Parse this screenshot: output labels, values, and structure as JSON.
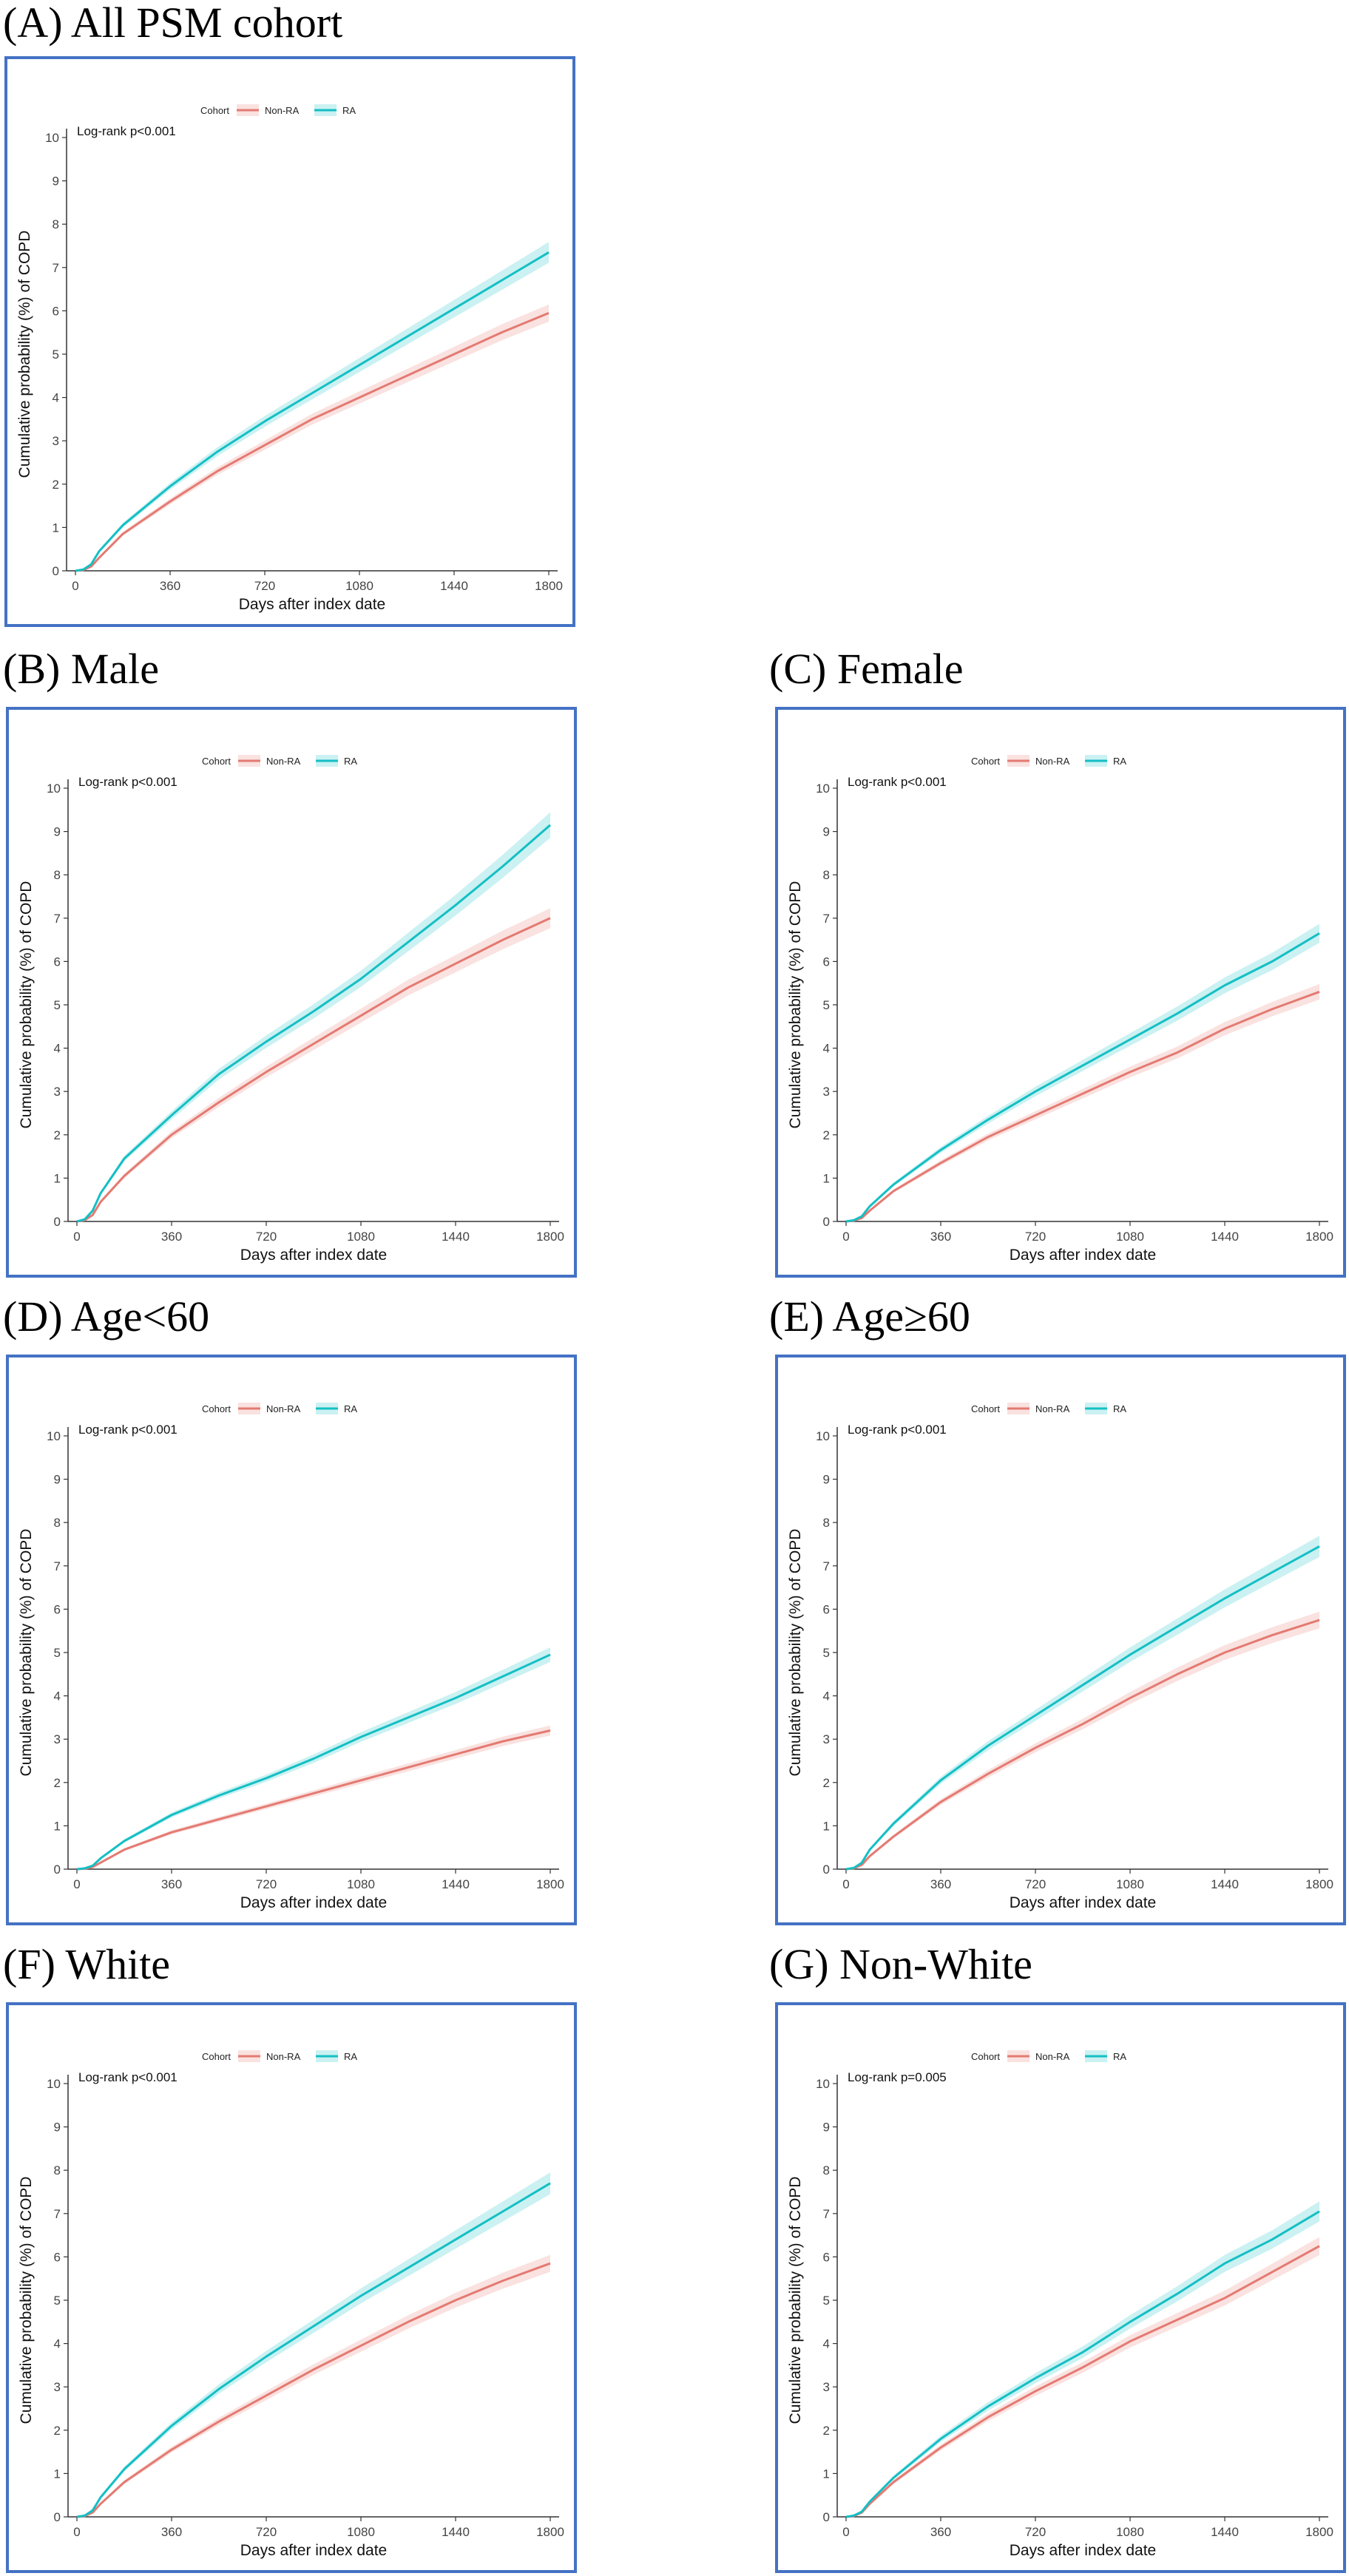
{
  "colors": {
    "non_ra": "#e47a72",
    "ra": "#14bfc4",
    "border": "#4472c4"
  },
  "chart_data": [
    {
      "id": "A",
      "panel_title": "(A) All PSM cohort",
      "type": "line",
      "title": "",
      "xlabel": "Days after index date",
      "ylabel": "Cumulative probability (%) of COPD",
      "xticks": [
        0,
        360,
        720,
        1080,
        1440,
        1800
      ],
      "yticks": [
        0,
        1,
        2,
        3,
        4,
        5,
        6,
        7,
        8,
        9,
        10
      ],
      "xlim": [
        0,
        1800
      ],
      "ylim": [
        0,
        10
      ],
      "annotation": "Log-rank p<0.001",
      "legend": {
        "title": "Cohort",
        "placement": "top-center",
        "entries": [
          "Non-RA",
          "RA"
        ]
      },
      "x": [
        0,
        30,
        60,
        90,
        180,
        360,
        540,
        720,
        900,
        1080,
        1260,
        1440,
        1620,
        1800
      ],
      "series": [
        {
          "name": "Non-RA",
          "values": [
            0,
            0.02,
            0.1,
            0.3,
            0.85,
            1.6,
            2.3,
            2.9,
            3.5,
            4.0,
            4.5,
            5.0,
            5.5,
            5.95
          ]
        },
        {
          "name": "RA",
          "values": [
            0,
            0.03,
            0.15,
            0.45,
            1.05,
            1.95,
            2.75,
            3.45,
            4.1,
            4.75,
            5.4,
            6.05,
            6.7,
            7.35
          ]
        }
      ]
    },
    {
      "id": "B",
      "panel_title": "(B) Male",
      "type": "line",
      "title": "",
      "xlabel": "Days after index date",
      "ylabel": "Cumulative probability (%) of COPD",
      "xticks": [
        0,
        360,
        720,
        1080,
        1440,
        1800
      ],
      "yticks": [
        0,
        1,
        2,
        3,
        4,
        5,
        6,
        7,
        8,
        9,
        10
      ],
      "xlim": [
        0,
        1800
      ],
      "ylim": [
        0,
        10
      ],
      "annotation": "Log-rank p<0.001",
      "legend": {
        "title": "Cohort",
        "placement": "top-center",
        "entries": [
          "Non-RA",
          "RA"
        ]
      },
      "x": [
        0,
        30,
        60,
        90,
        180,
        360,
        540,
        720,
        900,
        1080,
        1260,
        1440,
        1620,
        1800
      ],
      "series": [
        {
          "name": "Non-RA",
          "values": [
            0,
            0.03,
            0.15,
            0.45,
            1.05,
            2.0,
            2.75,
            3.45,
            4.1,
            4.75,
            5.4,
            5.95,
            6.5,
            7.0
          ]
        },
        {
          "name": "RA",
          "values": [
            0,
            0.05,
            0.25,
            0.65,
            1.45,
            2.45,
            3.4,
            4.15,
            4.85,
            5.6,
            6.45,
            7.3,
            8.2,
            9.15
          ]
        }
      ]
    },
    {
      "id": "C",
      "panel_title": "(C) Female",
      "type": "line",
      "title": "",
      "xlabel": "Days after index date",
      "ylabel": "Cumulative probability (%) of COPD",
      "xticks": [
        0,
        360,
        720,
        1080,
        1440,
        1800
      ],
      "yticks": [
        0,
        1,
        2,
        3,
        4,
        5,
        6,
        7,
        8,
        9,
        10
      ],
      "xlim": [
        0,
        1800
      ],
      "ylim": [
        0,
        10
      ],
      "annotation": "Log-rank p<0.001",
      "legend": {
        "title": "Cohort",
        "placement": "top-center",
        "entries": [
          "Non-RA",
          "RA"
        ]
      },
      "x": [
        0,
        30,
        60,
        90,
        180,
        360,
        540,
        720,
        900,
        1080,
        1260,
        1440,
        1620,
        1800
      ],
      "series": [
        {
          "name": "Non-RA",
          "values": [
            0,
            0.02,
            0.08,
            0.25,
            0.7,
            1.35,
            1.95,
            2.45,
            2.95,
            3.45,
            3.9,
            4.45,
            4.9,
            5.3
          ]
        },
        {
          "name": "RA",
          "values": [
            0,
            0.03,
            0.12,
            0.35,
            0.85,
            1.65,
            2.35,
            3.0,
            3.6,
            4.2,
            4.8,
            5.45,
            6.0,
            6.65
          ]
        }
      ]
    },
    {
      "id": "D",
      "panel_title": "(D) Age<60",
      "type": "line",
      "title": "",
      "xlabel": "Days after index date",
      "ylabel": "Cumulative probability (%) of COPD",
      "xticks": [
        0,
        360,
        720,
        1080,
        1440,
        1800
      ],
      "yticks": [
        0,
        1,
        2,
        3,
        4,
        5,
        6,
        7,
        8,
        9,
        10
      ],
      "xlim": [
        0,
        1800
      ],
      "ylim": [
        0,
        10
      ],
      "annotation": "Log-rank p<0.001",
      "legend": {
        "title": "Cohort",
        "placement": "top-center",
        "entries": [
          "Non-RA",
          "RA"
        ]
      },
      "x": [
        0,
        30,
        60,
        90,
        180,
        360,
        540,
        720,
        900,
        1080,
        1260,
        1440,
        1620,
        1800
      ],
      "series": [
        {
          "name": "Non-RA",
          "values": [
            0,
            0.01,
            0.05,
            0.15,
            0.45,
            0.85,
            1.15,
            1.45,
            1.75,
            2.05,
            2.35,
            2.65,
            2.95,
            3.2
          ]
        },
        {
          "name": "RA",
          "values": [
            0,
            0.02,
            0.08,
            0.25,
            0.65,
            1.25,
            1.7,
            2.1,
            2.55,
            3.05,
            3.5,
            3.95,
            4.45,
            4.95
          ]
        }
      ]
    },
    {
      "id": "E",
      "panel_title": "(E) Age≥60",
      "type": "line",
      "title": "",
      "xlabel": "Days after index date",
      "ylabel": "Cumulative probability (%) of COPD",
      "xticks": [
        0,
        360,
        720,
        1080,
        1440,
        1800
      ],
      "yticks": [
        0,
        1,
        2,
        3,
        4,
        5,
        6,
        7,
        8,
        9,
        10
      ],
      "xlim": [
        0,
        1800
      ],
      "ylim": [
        0,
        10
      ],
      "annotation": "Log-rank p<0.001",
      "legend": {
        "title": "Cohort",
        "placement": "top-center",
        "entries": [
          "Non-RA",
          "RA"
        ]
      },
      "x": [
        0,
        30,
        60,
        90,
        180,
        360,
        540,
        720,
        900,
        1080,
        1260,
        1440,
        1620,
        1800
      ],
      "series": [
        {
          "name": "Non-RA",
          "values": [
            0,
            0.02,
            0.1,
            0.3,
            0.75,
            1.55,
            2.2,
            2.8,
            3.35,
            3.95,
            4.5,
            5.0,
            5.4,
            5.75
          ]
        },
        {
          "name": "RA",
          "values": [
            0,
            0.03,
            0.15,
            0.45,
            1.05,
            2.05,
            2.85,
            3.55,
            4.25,
            4.95,
            5.6,
            6.25,
            6.85,
            7.45
          ]
        }
      ]
    },
    {
      "id": "F",
      "panel_title": "(F) White",
      "type": "line",
      "title": "",
      "xlabel": "Days after index date",
      "ylabel": "Cumulative probability (%) of COPD",
      "xticks": [
        0,
        360,
        720,
        1080,
        1440,
        1800
      ],
      "yticks": [
        0,
        1,
        2,
        3,
        4,
        5,
        6,
        7,
        8,
        9,
        10
      ],
      "xlim": [
        0,
        1800
      ],
      "ylim": [
        0,
        10
      ],
      "annotation": "Log-rank p<0.001",
      "legend": {
        "title": "Cohort",
        "placement": "top-center",
        "entries": [
          "Non-RA",
          "RA"
        ]
      },
      "x": [
        0,
        30,
        60,
        90,
        180,
        360,
        540,
        720,
        900,
        1080,
        1260,
        1440,
        1620,
        1800
      ],
      "series": [
        {
          "name": "Non-RA",
          "values": [
            0,
            0.02,
            0.1,
            0.3,
            0.8,
            1.55,
            2.2,
            2.8,
            3.4,
            3.95,
            4.5,
            5.0,
            5.45,
            5.85
          ]
        },
        {
          "name": "RA",
          "values": [
            0,
            0.03,
            0.15,
            0.45,
            1.1,
            2.1,
            2.95,
            3.7,
            4.4,
            5.1,
            5.75,
            6.4,
            7.05,
            7.7
          ]
        }
      ]
    },
    {
      "id": "G",
      "panel_title": "(G) Non-White",
      "type": "line",
      "title": "",
      "xlabel": "Days after index date",
      "ylabel": "Cumulative probability (%) of COPD",
      "xticks": [
        0,
        360,
        720,
        1080,
        1440,
        1800
      ],
      "yticks": [
        0,
        1,
        2,
        3,
        4,
        5,
        6,
        7,
        8,
        9,
        10
      ],
      "xlim": [
        0,
        1800
      ],
      "ylim": [
        0,
        10
      ],
      "annotation": "Log-rank p=0.005",
      "legend": {
        "title": "Cohort",
        "placement": "top-center",
        "entries": [
          "Non-RA",
          "RA"
        ]
      },
      "x": [
        0,
        30,
        60,
        90,
        180,
        360,
        540,
        720,
        900,
        1080,
        1260,
        1440,
        1620,
        1800
      ],
      "series": [
        {
          "name": "Non-RA",
          "values": [
            0,
            0.02,
            0.1,
            0.3,
            0.8,
            1.6,
            2.3,
            2.9,
            3.45,
            4.05,
            4.55,
            5.05,
            5.65,
            6.25
          ]
        },
        {
          "name": "RA",
          "values": [
            0,
            0.03,
            0.12,
            0.35,
            0.9,
            1.8,
            2.55,
            3.2,
            3.8,
            4.5,
            5.15,
            5.85,
            6.4,
            7.05
          ]
        }
      ]
    }
  ]
}
